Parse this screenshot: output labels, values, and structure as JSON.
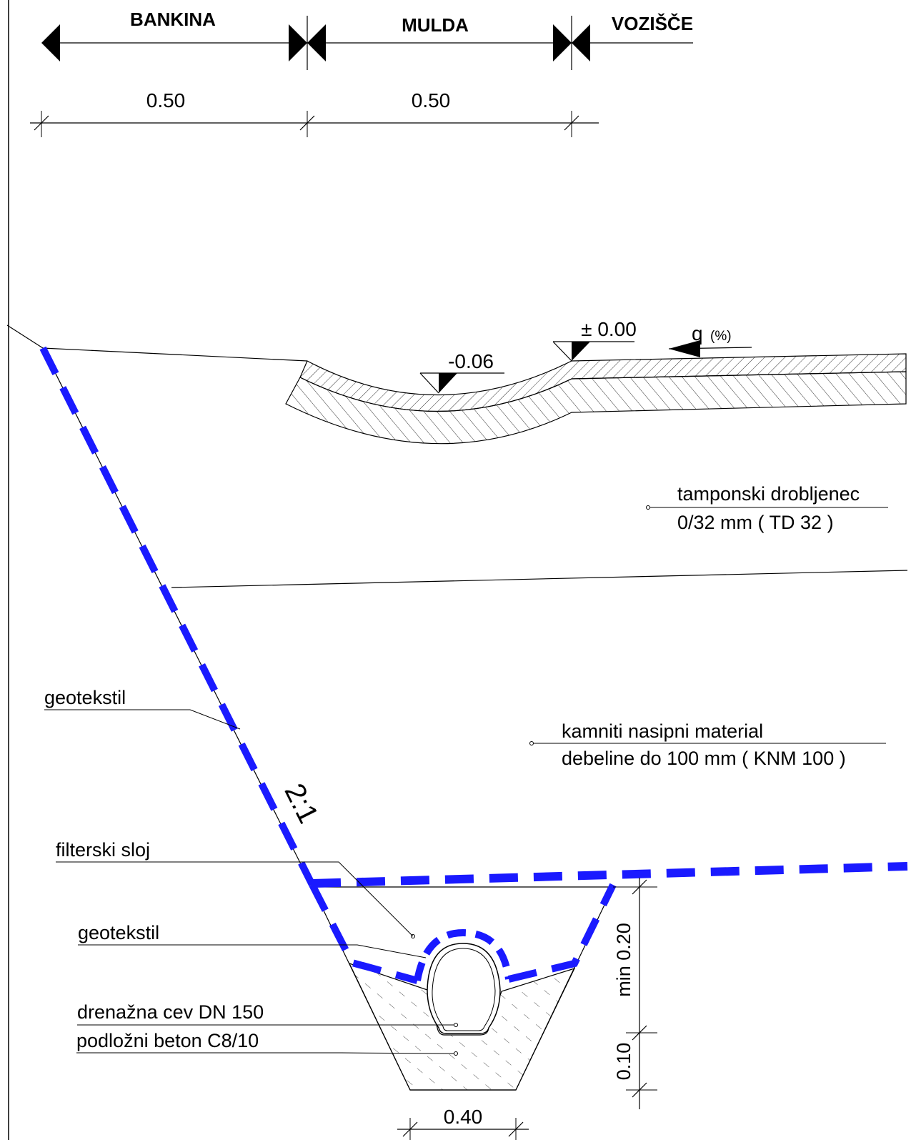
{
  "zones": {
    "bankina": "BANKINA",
    "mulda": "MULDA",
    "vozisce": "VOZIŠČE"
  },
  "dimensions": {
    "bankina_width": "0.50",
    "mulda_width": "0.50",
    "min_cover": "min 0.20",
    "bedding": "0.10",
    "trench_bottom": "0.40"
  },
  "levels": {
    "top": "± 0.00",
    "ditch": "-0.06",
    "slope_symbol": "q",
    "slope_unit": "(%)"
  },
  "slope_ratio": "2:1",
  "labels": {
    "tampon_line1": "tamponski drobljenec",
    "tampon_line2": "0/32 mm ( TD 32 )",
    "knm_line1": "kamniti nasipni material",
    "knm_line2": "debeline do 100 mm ( KNM 100 )",
    "geotekstil_upper": "geotekstil",
    "filterski_sloj": "filterski sloj",
    "geotekstil_lower": "geotekstil",
    "drenazna_cev": "drenažna cev DN 150",
    "podlozni_beton": "podložni beton C8/10"
  },
  "colors": {
    "geotextile": "#1a1aff",
    "lines": "#000000"
  }
}
